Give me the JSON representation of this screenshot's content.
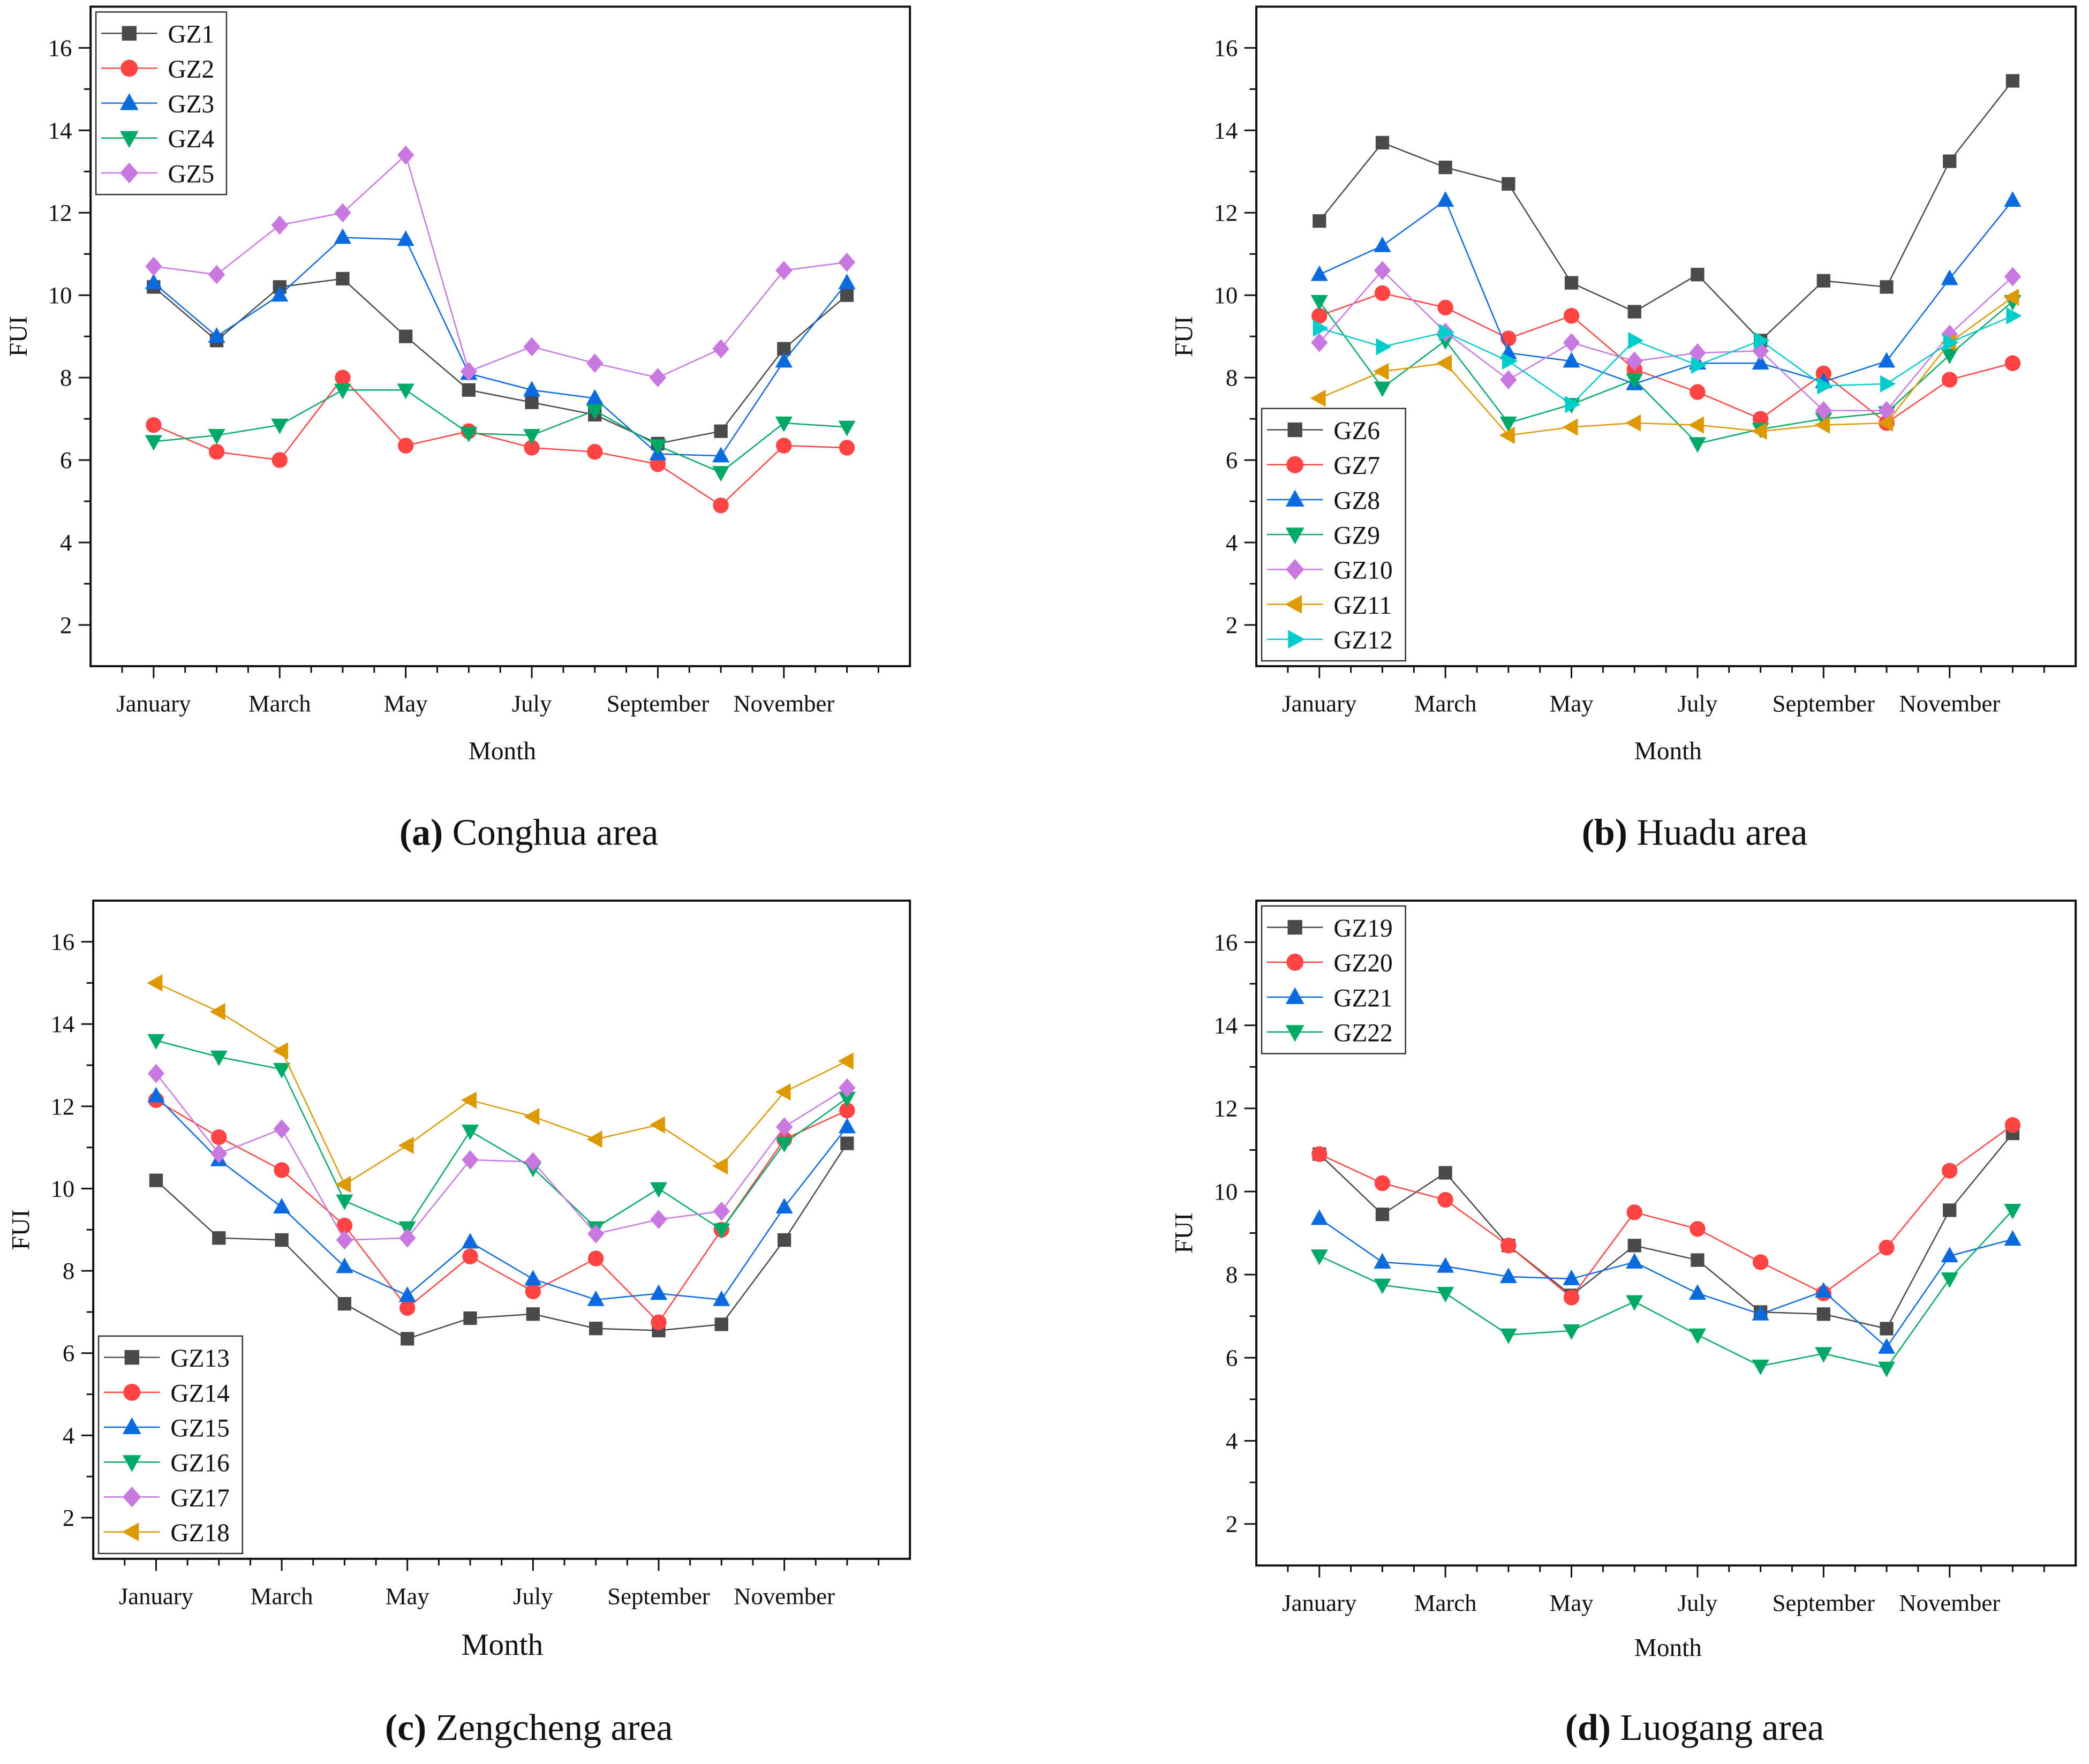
{
  "colors": {
    "square": "#4a4a4a",
    "circle": "#ff4444",
    "up": "#0a6ae0",
    "down": "#00aa66",
    "diamond": "#c878e0",
    "left": "#dd9900",
    "right": "#00cccc"
  },
  "chart_data": [
    {
      "type": "line",
      "caption_letter": "(a)",
      "caption_text": "Conghua area",
      "xlabel": "Month",
      "ylabel": "FUI",
      "xlim": [
        0,
        13
      ],
      "ylim": [
        1,
        17
      ],
      "xticks": [
        1,
        3,
        5,
        7,
        9,
        11
      ],
      "xticklabels": [
        "January",
        "March",
        "May",
        "July",
        "September",
        "November"
      ],
      "yticks": [
        2,
        4,
        6,
        8,
        10,
        12,
        14,
        16
      ],
      "yticklabels": [
        "2",
        "4",
        "6",
        "8",
        "10",
        "12",
        "14",
        "16"
      ],
      "legend_position": "top-left",
      "x": [
        1,
        2,
        3,
        4,
        5,
        6,
        7,
        8,
        9,
        10,
        11,
        12
      ],
      "series": [
        {
          "name": "GZ1",
          "marker": "square",
          "values": [
            10.2,
            8.9,
            10.2,
            10.4,
            9.0,
            7.7,
            7.4,
            7.1,
            6.4,
            6.7,
            8.7,
            10.0
          ]
        },
        {
          "name": "GZ2",
          "marker": "circle",
          "values": [
            6.85,
            6.2,
            6.0,
            8.0,
            6.35,
            6.7,
            6.3,
            6.2,
            5.9,
            4.9,
            6.35,
            6.3
          ]
        },
        {
          "name": "GZ3",
          "marker": "up",
          "values": [
            10.3,
            9.0,
            10.0,
            11.4,
            11.35,
            8.1,
            7.7,
            7.5,
            6.15,
            6.1,
            8.4,
            10.3
          ]
        },
        {
          "name": "GZ4",
          "marker": "down",
          "values": [
            6.45,
            6.6,
            6.85,
            7.7,
            7.7,
            6.65,
            6.6,
            7.2,
            6.35,
            5.7,
            6.9,
            6.8
          ]
        },
        {
          "name": "GZ5",
          "marker": "diamond",
          "values": [
            10.7,
            10.5,
            11.7,
            12.0,
            13.4,
            8.15,
            8.75,
            8.35,
            8.0,
            8.7,
            10.6,
            10.8
          ]
        }
      ]
    },
    {
      "type": "line",
      "caption_letter": "(b)",
      "caption_text": "Huadu area",
      "xlabel": "Month",
      "ylabel": "FUI",
      "xlim": [
        0,
        13
      ],
      "ylim": [
        1,
        17
      ],
      "xticks": [
        1,
        3,
        5,
        7,
        9,
        11
      ],
      "xticklabels": [
        "January",
        "March",
        "May",
        "July",
        "September",
        "November"
      ],
      "yticks": [
        2,
        4,
        6,
        8,
        10,
        12,
        14,
        16
      ],
      "yticklabels": [
        "2",
        "4",
        "6",
        "8",
        "10",
        "12",
        "14",
        "16"
      ],
      "legend_position": "bottom-left",
      "x": [
        1,
        2,
        3,
        4,
        5,
        6,
        7,
        8,
        9,
        10,
        11,
        12
      ],
      "series": [
        {
          "name": "GZ6",
          "marker": "square",
          "values": [
            11.8,
            13.7,
            13.1,
            12.7,
            10.3,
            9.6,
            10.5,
            8.9,
            10.35,
            10.2,
            13.25,
            15.2
          ]
        },
        {
          "name": "GZ7",
          "marker": "circle",
          "values": [
            9.5,
            10.05,
            9.7,
            8.95,
            9.5,
            8.2,
            7.65,
            7.0,
            8.1,
            6.9,
            7.95,
            8.35
          ]
        },
        {
          "name": "GZ8",
          "marker": "up",
          "values": [
            10.5,
            11.2,
            12.3,
            8.6,
            8.4,
            7.85,
            8.35,
            8.35,
            7.9,
            8.4,
            10.4,
            12.3
          ]
        },
        {
          "name": "GZ9",
          "marker": "down",
          "values": [
            9.85,
            7.75,
            8.9,
            6.9,
            7.35,
            7.95,
            6.4,
            6.75,
            7.0,
            7.15,
            8.55,
            9.85
          ]
        },
        {
          "name": "GZ10",
          "marker": "diamond",
          "values": [
            8.85,
            10.6,
            9.1,
            7.95,
            8.85,
            8.4,
            8.6,
            8.65,
            7.2,
            7.2,
            9.05,
            10.45
          ]
        },
        {
          "name": "GZ11",
          "marker": "left",
          "values": [
            7.5,
            8.15,
            8.35,
            6.6,
            6.8,
            6.9,
            6.85,
            6.7,
            6.85,
            6.9,
            8.85,
            9.95
          ]
        },
        {
          "name": "GZ12",
          "marker": "right",
          "values": [
            9.2,
            8.75,
            9.1,
            8.4,
            7.35,
            8.9,
            8.3,
            8.9,
            7.8,
            7.85,
            8.85,
            9.5
          ]
        }
      ]
    },
    {
      "type": "line",
      "caption_letter": "(c)",
      "caption_text": "Zengcheng area",
      "xlabel": "Month",
      "ylabel": "FUI",
      "xlim": [
        0,
        13
      ],
      "ylim": [
        1,
        17
      ],
      "xticks": [
        1,
        3,
        5,
        7,
        9,
        11
      ],
      "xticklabels": [
        "January",
        "March",
        "May",
        "July",
        "September",
        "November"
      ],
      "yticks": [
        2,
        4,
        6,
        8,
        10,
        12,
        14,
        16
      ],
      "yticklabels": [
        "2",
        "4",
        "6",
        "8",
        "10",
        "12",
        "14",
        "16"
      ],
      "legend_position": "bottom-left",
      "x": [
        1,
        2,
        3,
        4,
        5,
        6,
        7,
        8,
        9,
        10,
        11,
        12
      ],
      "series": [
        {
          "name": "GZ13",
          "marker": "square",
          "values": [
            10.2,
            8.8,
            8.75,
            7.2,
            6.35,
            6.85,
            6.95,
            6.6,
            6.55,
            6.7,
            8.75,
            11.1
          ]
        },
        {
          "name": "GZ14",
          "marker": "circle",
          "values": [
            12.15,
            11.25,
            10.45,
            9.1,
            7.1,
            8.35,
            7.5,
            8.3,
            6.75,
            9.0,
            11.2,
            11.9
          ]
        },
        {
          "name": "GZ15",
          "marker": "up",
          "values": [
            12.25,
            10.7,
            9.55,
            8.1,
            7.4,
            8.7,
            7.8,
            7.3,
            7.45,
            7.3,
            9.55,
            11.5
          ]
        },
        {
          "name": "GZ16",
          "marker": "down",
          "values": [
            13.6,
            13.2,
            12.9,
            9.7,
            9.05,
            11.4,
            10.5,
            9.05,
            10.0,
            9.0,
            11.1,
            12.2
          ]
        },
        {
          "name": "GZ17",
          "marker": "diamond",
          "values": [
            12.8,
            10.85,
            11.45,
            8.75,
            8.8,
            10.7,
            10.65,
            8.9,
            9.25,
            9.45,
            11.5,
            12.45
          ]
        },
        {
          "name": "GZ18",
          "marker": "left",
          "values": [
            15.0,
            14.3,
            13.35,
            10.1,
            11.05,
            12.15,
            11.75,
            11.2,
            11.55,
            10.55,
            12.35,
            13.1
          ]
        }
      ]
    },
    {
      "type": "line",
      "caption_letter": "(d)",
      "caption_text": "Luogang area",
      "xlabel": "Month",
      "ylabel": "FUI",
      "xlim": [
        0,
        13
      ],
      "ylim": [
        1,
        17
      ],
      "xticks": [
        1,
        3,
        5,
        7,
        9,
        11
      ],
      "xticklabels": [
        "January",
        "March",
        "May",
        "July",
        "September",
        "November"
      ],
      "yticks": [
        2,
        4,
        6,
        8,
        10,
        12,
        14,
        16
      ],
      "yticklabels": [
        "2",
        "4",
        "6",
        "8",
        "10",
        "12",
        "14",
        "16"
      ],
      "legend_position": "top-left",
      "x": [
        1,
        2,
        3,
        4,
        5,
        6,
        7,
        8,
        9,
        10,
        11,
        12
      ],
      "series": [
        {
          "name": "GZ19",
          "marker": "square",
          "values": [
            10.9,
            9.45,
            10.45,
            8.7,
            7.5,
            8.7,
            8.35,
            7.1,
            7.05,
            6.7,
            9.55,
            11.4
          ]
        },
        {
          "name": "GZ20",
          "marker": "circle",
          "values": [
            10.9,
            10.2,
            9.8,
            8.7,
            7.45,
            9.5,
            9.1,
            8.3,
            7.55,
            8.65,
            10.5,
            11.6
          ]
        },
        {
          "name": "GZ21",
          "marker": "up",
          "values": [
            9.35,
            8.3,
            8.2,
            7.95,
            7.9,
            8.3,
            7.55,
            7.05,
            7.6,
            6.25,
            8.45,
            8.85
          ]
        },
        {
          "name": "GZ22",
          "marker": "down",
          "values": [
            8.45,
            7.75,
            7.55,
            6.55,
            6.65,
            7.35,
            6.55,
            5.8,
            6.1,
            5.75,
            7.9,
            9.55
          ]
        }
      ]
    }
  ]
}
